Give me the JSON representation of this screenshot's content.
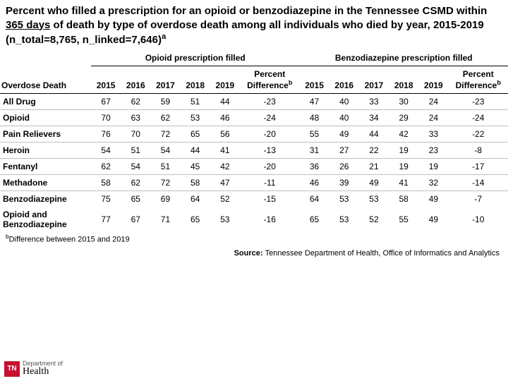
{
  "title_parts": {
    "p1": "Percent who filled a prescription for an opioid or benzodiazepine in the Tennessee CSMD within ",
    "underlined": "365 days",
    "p2": " of death by type of overdose death among all individuals who died by year, 2015-2019 (n_total=8,765, n_linked=7,646)",
    "sup": "a"
  },
  "group_headers": {
    "g1": "Opioid prescription filled",
    "g2": "Benzodiazepine prescription filled"
  },
  "row_header_label": "Overdose Death",
  "year_cols": [
    "2015",
    "2016",
    "2017",
    "2018",
    "2019"
  ],
  "diff_label": "Percent Difference",
  "diff_sup": "b",
  "rows": [
    {
      "label": "All Drug",
      "o": [
        "67",
        "62",
        "59",
        "51",
        "44",
        "-23"
      ],
      "b": [
        "47",
        "40",
        "33",
        "30",
        "24",
        "-23"
      ]
    },
    {
      "label": "Opioid",
      "o": [
        "70",
        "63",
        "62",
        "53",
        "46",
        "-24"
      ],
      "b": [
        "48",
        "40",
        "34",
        "29",
        "24",
        "-24"
      ]
    },
    {
      "label": "Pain Relievers",
      "o": [
        "76",
        "70",
        "72",
        "65",
        "56",
        "-20"
      ],
      "b": [
        "55",
        "49",
        "44",
        "42",
        "33",
        "-22"
      ]
    },
    {
      "label": "Heroin",
      "o": [
        "54",
        "51",
        "54",
        "44",
        "41",
        "-13"
      ],
      "b": [
        "31",
        "27",
        "22",
        "19",
        "23",
        "-8"
      ]
    },
    {
      "label": "Fentanyl",
      "o": [
        "62",
        "54",
        "51",
        "45",
        "42",
        "-20"
      ],
      "b": [
        "36",
        "26",
        "21",
        "19",
        "19",
        "-17"
      ]
    },
    {
      "label": "Methadone",
      "o": [
        "58",
        "62",
        "72",
        "58",
        "47",
        "-11"
      ],
      "b": [
        "46",
        "39",
        "49",
        "41",
        "32",
        "-14"
      ]
    },
    {
      "label": "Benzodiazepine",
      "o": [
        "75",
        "65",
        "69",
        "64",
        "52",
        "-15"
      ],
      "b": [
        "64",
        "53",
        "53",
        "58",
        "49",
        "-7"
      ],
      "noborder": true
    },
    {
      "label": "Opioid and Benzodiazepine",
      "o": [
        "77",
        "67",
        "71",
        "65",
        "53",
        "-16"
      ],
      "b": [
        "65",
        "53",
        "52",
        "55",
        "49",
        "-10"
      ],
      "noborder": true
    }
  ],
  "footnote_sup": "b",
  "footnote": "Difference between 2015 and 2019",
  "source_label": "Source: ",
  "source_text": "Tennessee Department of Health, Office of Informatics and Analytics",
  "logo": {
    "badge": "TN",
    "line1": "Department of",
    "line2": "Health"
  },
  "colors": {
    "border": "#bfbfbf",
    "accent": "#c8102e"
  }
}
